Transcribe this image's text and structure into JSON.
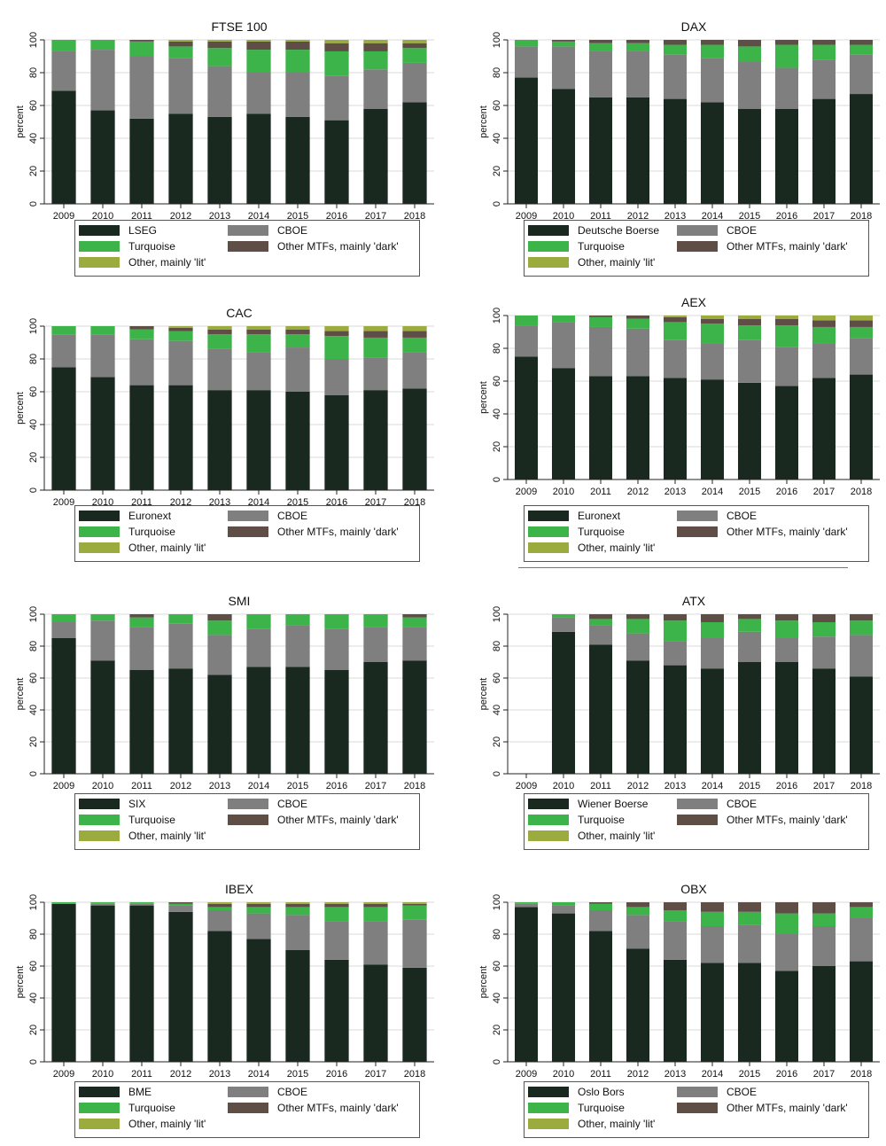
{
  "colors": {
    "primary": "#19291f",
    "cboe": "#7f7f7f",
    "turquoise": "#3cb44a",
    "dark": "#5e4e46",
    "lit": "#9cab3e",
    "gridline": "#d9d9d9",
    "axis": "#222222"
  },
  "chart_data": [
    {
      "type": "bar",
      "stacked": true,
      "title": "FTSE 100",
      "ylabel": "percent",
      "ylim": [
        0,
        100
      ],
      "yticks": [
        "0",
        "20",
        "40",
        "60",
        "80",
        "100"
      ],
      "grid": true,
      "legend_position": "bottom",
      "categories": [
        "2009",
        "2010",
        "2011",
        "2012",
        "2013",
        "2014",
        "2015",
        "2016",
        "2017",
        "2018"
      ],
      "series": [
        {
          "name": "LSEG",
          "color_key": "primary",
          "values": [
            69,
            57,
            52,
            55,
            53,
            55,
            53,
            51,
            58,
            62
          ]
        },
        {
          "name": "CBOE",
          "color_key": "cboe",
          "values": [
            24,
            37,
            38,
            34,
            31,
            25,
            27,
            27,
            24,
            24
          ]
        },
        {
          "name": "Turquoise",
          "color_key": "turquoise",
          "values": [
            7,
            6,
            9,
            7,
            11,
            14,
            14,
            15,
            11,
            9
          ]
        },
        {
          "name": "Other MTFs, mainly 'dark'",
          "color_key": "dark",
          "values": [
            0,
            0,
            1,
            3,
            4,
            5,
            5,
            5,
            5,
            3
          ]
        },
        {
          "name": "Other, mainly 'lit'",
          "color_key": "lit",
          "values": [
            0,
            0,
            0,
            1,
            1,
            1,
            1,
            2,
            2,
            2
          ]
        }
      ]
    },
    {
      "type": "bar",
      "stacked": true,
      "title": "DAX",
      "ylabel": "percent",
      "ylim": [
        0,
        100
      ],
      "yticks": [
        "0",
        "20",
        "40",
        "60",
        "80",
        "100"
      ],
      "grid": true,
      "legend_position": "bottom",
      "categories": [
        "2009",
        "2010",
        "2011",
        "2012",
        "2013",
        "2014",
        "2015",
        "2016",
        "2017",
        "2018"
      ],
      "series": [
        {
          "name": "Deutsche Boerse",
          "color_key": "primary",
          "values": [
            77,
            70,
            65,
            65,
            64,
            62,
            58,
            58,
            64,
            67
          ]
        },
        {
          "name": "CBOE",
          "color_key": "cboe",
          "values": [
            19,
            26,
            28,
            28,
            27,
            27,
            29,
            25,
            24,
            24
          ]
        },
        {
          "name": "Turquoise",
          "color_key": "turquoise",
          "values": [
            4,
            3,
            5,
            5,
            6,
            8,
            9,
            14,
            9,
            6
          ]
        },
        {
          "name": "Other MTFs, mainly 'dark'",
          "color_key": "dark",
          "values": [
            0,
            1,
            2,
            2,
            3,
            3,
            4,
            3,
            3,
            3
          ]
        },
        {
          "name": "Other, mainly 'lit'",
          "color_key": "lit",
          "values": [
            0,
            0,
            0,
            0,
            0,
            0,
            0,
            0,
            0,
            0
          ]
        }
      ]
    },
    {
      "type": "bar",
      "stacked": true,
      "title": "CAC",
      "ylabel": "percent",
      "ylim": [
        0,
        100
      ],
      "yticks": [
        "0",
        "20",
        "40",
        "60",
        "80",
        "100"
      ],
      "grid": true,
      "legend_position": "bottom",
      "categories": [
        "2009",
        "2010",
        "2011",
        "2012",
        "2013",
        "2014",
        "2015",
        "2016",
        "2017",
        "2018"
      ],
      "series": [
        {
          "name": "Euronext",
          "color_key": "primary",
          "values": [
            75,
            69,
            64,
            64,
            61,
            61,
            60,
            58,
            61,
            62
          ]
        },
        {
          "name": "CBOE",
          "color_key": "cboe",
          "values": [
            20,
            26,
            28,
            27,
            25,
            23,
            27,
            22,
            20,
            22
          ]
        },
        {
          "name": "Turquoise",
          "color_key": "turquoise",
          "values": [
            5,
            5,
            6,
            6,
            9,
            11,
            8,
            14,
            12,
            9
          ]
        },
        {
          "name": "Other MTFs, mainly 'dark'",
          "color_key": "dark",
          "values": [
            0,
            0,
            2,
            2,
            3,
            3,
            3,
            3,
            4,
            4
          ]
        },
        {
          "name": "Other, mainly 'lit'",
          "color_key": "lit",
          "values": [
            0,
            0,
            0,
            1,
            2,
            2,
            2,
            3,
            3,
            3
          ]
        }
      ]
    },
    {
      "type": "bar",
      "stacked": true,
      "title": "AEX",
      "ylabel": "percent",
      "ylim": [
        0,
        100
      ],
      "yticks": [
        "0",
        "20",
        "40",
        "60",
        "80",
        "100"
      ],
      "grid": true,
      "legend_position": "bottom",
      "categories": [
        "2009",
        "2010",
        "2011",
        "2012",
        "2013",
        "2014",
        "2015",
        "2016",
        "2017",
        "2018"
      ],
      "series": [
        {
          "name": "Euronext",
          "color_key": "primary",
          "values": [
            75,
            68,
            63,
            63,
            62,
            61,
            59,
            57,
            62,
            64
          ]
        },
        {
          "name": "CBOE",
          "color_key": "cboe",
          "values": [
            19,
            28,
            30,
            29,
            23,
            22,
            26,
            24,
            21,
            22
          ]
        },
        {
          "name": "Turquoise",
          "color_key": "turquoise",
          "values": [
            6,
            4,
            6,
            6,
            11,
            12,
            9,
            13,
            10,
            7
          ]
        },
        {
          "name": "Other MTFs, mainly 'dark'",
          "color_key": "dark",
          "values": [
            0,
            0,
            1,
            2,
            3,
            3,
            4,
            4,
            4,
            4
          ]
        },
        {
          "name": "Other, mainly 'lit'",
          "color_key": "lit",
          "values": [
            0,
            0,
            0,
            0,
            1,
            2,
            2,
            2,
            3,
            3
          ]
        }
      ]
    },
    {
      "type": "bar",
      "stacked": true,
      "title": "SMI",
      "ylabel": "percent",
      "ylim": [
        0,
        100
      ],
      "yticks": [
        "0",
        "20",
        "40",
        "60",
        "80",
        "100"
      ],
      "grid": true,
      "legend_position": "bottom",
      "categories": [
        "2009",
        "2010",
        "2011",
        "2012",
        "2013",
        "2014",
        "2015",
        "2016",
        "2017",
        "2018"
      ],
      "series": [
        {
          "name": "SIX",
          "color_key": "primary",
          "values": [
            85,
            71,
            65,
            66,
            62,
            67,
            67,
            65,
            70,
            71
          ]
        },
        {
          "name": "CBOE",
          "color_key": "cboe",
          "values": [
            10,
            25,
            27,
            28,
            25,
            24,
            26,
            26,
            22,
            21
          ]
        },
        {
          "name": "Turquoise",
          "color_key": "turquoise",
          "values": [
            5,
            4,
            6,
            6,
            9,
            9,
            7,
            9,
            8,
            6
          ]
        },
        {
          "name": "Other MTFs, mainly 'dark'",
          "color_key": "dark",
          "values": [
            0,
            0,
            2,
            0,
            4,
            0,
            0,
            0,
            0,
            2
          ]
        },
        {
          "name": "Other, mainly 'lit'",
          "color_key": "lit",
          "values": [
            0,
            0,
            0,
            0,
            0,
            0,
            0,
            0,
            0,
            0
          ]
        }
      ]
    },
    {
      "type": "bar",
      "stacked": true,
      "title": "ATX",
      "ylabel": "percent",
      "ylim": [
        0,
        100
      ],
      "yticks": [
        "0",
        "20",
        "40",
        "60",
        "80",
        "100"
      ],
      "grid": true,
      "legend_position": "bottom",
      "categories": [
        "2009",
        "2010",
        "2011",
        "2012",
        "2013",
        "2014",
        "2015",
        "2016",
        "2017",
        "2018"
      ],
      "series": [
        {
          "name": "Wiener Boerse",
          "color_key": "primary",
          "values": [
            0,
            89,
            81,
            71,
            68,
            66,
            70,
            70,
            66,
            61
          ]
        },
        {
          "name": "CBOE",
          "color_key": "cboe",
          "values": [
            0,
            9,
            12,
            17,
            15,
            19,
            19,
            15,
            20,
            26
          ]
        },
        {
          "name": "Turquoise",
          "color_key": "turquoise",
          "values": [
            0,
            2,
            4,
            9,
            13,
            10,
            8,
            11,
            9,
            9
          ]
        },
        {
          "name": "Other MTFs, mainly 'dark'",
          "color_key": "dark",
          "values": [
            0,
            0,
            3,
            3,
            4,
            5,
            3,
            4,
            5,
            4
          ]
        },
        {
          "name": "Other, mainly 'lit'",
          "color_key": "lit",
          "values": [
            0,
            0,
            0,
            0,
            0,
            0,
            0,
            0,
            0,
            0
          ]
        }
      ]
    },
    {
      "type": "bar",
      "stacked": true,
      "title": "IBEX",
      "ylabel": "percent",
      "ylim": [
        0,
        100
      ],
      "yticks": [
        "0",
        "20",
        "40",
        "60",
        "80",
        "100"
      ],
      "grid": true,
      "legend_position": "bottom",
      "categories": [
        "2009",
        "2010",
        "2011",
        "2012",
        "2013",
        "2014",
        "2015",
        "2016",
        "2017",
        "2018"
      ],
      "series": [
        {
          "name": "BME",
          "color_key": "primary",
          "values": [
            99,
            98,
            98,
            94,
            82,
            77,
            70,
            64,
            61,
            59
          ]
        },
        {
          "name": "CBOE",
          "color_key": "cboe",
          "values": [
            0,
            1,
            1,
            4,
            13,
            16,
            22,
            24,
            27,
            30
          ]
        },
        {
          "name": "Turquoise",
          "color_key": "turquoise",
          "values": [
            1,
            1,
            1,
            1,
            2,
            4,
            5,
            9,
            9,
            9
          ]
        },
        {
          "name": "Other MTFs, mainly 'dark'",
          "color_key": "dark",
          "values": [
            0,
            0,
            0,
            1,
            2,
            2,
            2,
            2,
            2,
            1
          ]
        },
        {
          "name": "Other, mainly 'lit'",
          "color_key": "lit",
          "values": [
            0,
            0,
            0,
            0,
            1,
            1,
            1,
            1,
            1,
            1
          ]
        }
      ]
    },
    {
      "type": "bar",
      "stacked": true,
      "title": "OBX",
      "ylabel": "percent",
      "ylim": [
        0,
        100
      ],
      "yticks": [
        "0",
        "20",
        "40",
        "60",
        "80",
        "100"
      ],
      "grid": true,
      "legend_position": "bottom",
      "categories": [
        "2009",
        "2010",
        "2011",
        "2012",
        "2013",
        "2014",
        "2015",
        "2016",
        "2017",
        "2018"
      ],
      "series": [
        {
          "name": "Oslo Bors",
          "color_key": "primary",
          "values": [
            97,
            93,
            82,
            71,
            64,
            62,
            62,
            57,
            60,
            63
          ]
        },
        {
          "name": "CBOE",
          "color_key": "cboe",
          "values": [
            2,
            5,
            13,
            21,
            24,
            23,
            24,
            23,
            25,
            27
          ]
        },
        {
          "name": "Turquoise",
          "color_key": "turquoise",
          "values": [
            1,
            2,
            4,
            5,
            7,
            9,
            8,
            13,
            8,
            7
          ]
        },
        {
          "name": "Other MTFs, mainly 'dark'",
          "color_key": "dark",
          "values": [
            0,
            0,
            1,
            3,
            5,
            6,
            6,
            7,
            7,
            3
          ]
        },
        {
          "name": "Other, mainly 'lit'",
          "color_key": "lit",
          "values": [
            0,
            0,
            0,
            0,
            0,
            0,
            0,
            0,
            0,
            0
          ]
        }
      ]
    }
  ]
}
